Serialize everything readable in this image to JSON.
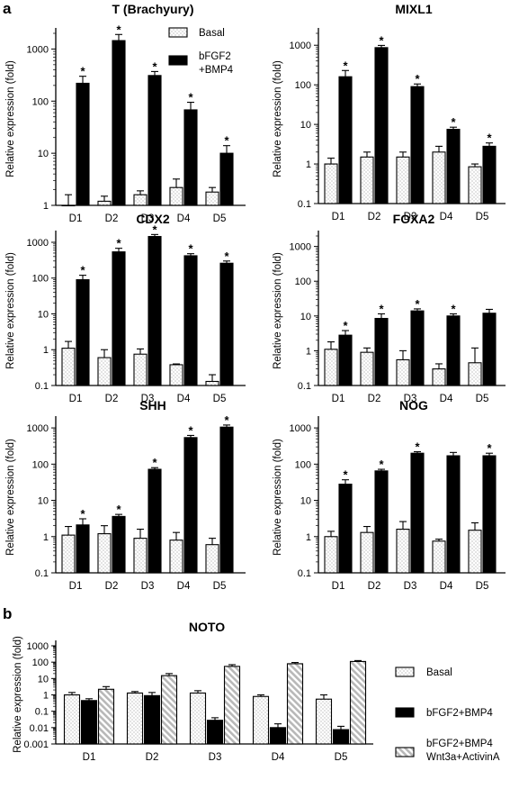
{
  "panel_labels": [
    "a",
    "b"
  ],
  "chart_data": [
    {
      "type": "bar",
      "title": "T (Brachyury)",
      "ylabel": "Relative expression  (fold)",
      "yscale": "log",
      "ylim": [
        1,
        2000
      ],
      "yticks": [
        "1",
        "10",
        "100",
        "1000"
      ],
      "categories": [
        "D1",
        "D2",
        "D3",
        "D4",
        "D5"
      ],
      "legend": {
        "position": "top-right",
        "entries": [
          "Basal",
          "bFGF2",
          "+BMP4"
        ]
      },
      "series": [
        {
          "name": "Basal",
          "values": [
            1.0,
            1.2,
            1.6,
            2.2,
            1.8
          ],
          "err": [
            1.6,
            1.5,
            1.9,
            3.2,
            2.2
          ]
        },
        {
          "name": "bFGF2+BMP4",
          "values": [
            220,
            1450,
            310,
            68,
            10
          ],
          "err": [
            300,
            1900,
            370,
            95,
            14
          ],
          "significant": [
            true,
            true,
            true,
            true,
            true
          ]
        }
      ]
    },
    {
      "type": "bar",
      "title": "MIXL1",
      "ylabel": "Relative expression  (fold)",
      "yscale": "log",
      "ylim": [
        0.1,
        2000
      ],
      "yticks": [
        "0.1",
        "1",
        "10",
        "100",
        "1000"
      ],
      "categories": [
        "D1",
        "D2",
        "D3",
        "D4",
        "D5"
      ],
      "series": [
        {
          "name": "Basal",
          "values": [
            1.0,
            1.5,
            1.5,
            2.0,
            0.85
          ],
          "err": [
            1.4,
            2.0,
            2.0,
            2.8,
            1.0
          ]
        },
        {
          "name": "bFGF2+BMP4",
          "values": [
            160,
            870,
            90,
            7.5,
            2.8
          ],
          "err": [
            230,
            990,
            105,
            8.5,
            3.4
          ],
          "significant": [
            true,
            true,
            true,
            true,
            true
          ]
        }
      ]
    },
    {
      "type": "bar",
      "title": "CDX2",
      "ylabel": "Relative expression  (fold)",
      "yscale": "log",
      "ylim": [
        0.1,
        1500
      ],
      "yticks": [
        "0.1",
        "1",
        "10",
        "100",
        "1000"
      ],
      "categories": [
        "D1",
        "D2",
        "D3",
        "D4",
        "D5"
      ],
      "series": [
        {
          "name": "Basal",
          "values": [
            1.1,
            0.6,
            0.75,
            0.38,
            0.13
          ],
          "err": [
            1.7,
            1.0,
            1.05,
            0.4,
            0.2
          ]
        },
        {
          "name": "bFGF2+BMP4",
          "values": [
            90,
            540,
            1450,
            420,
            260
          ],
          "err": [
            120,
            680,
            1650,
            480,
            300
          ],
          "significant": [
            true,
            true,
            true,
            true,
            true
          ]
        }
      ]
    },
    {
      "type": "bar",
      "title": "FOXA2",
      "ylabel": "Relative expression  (fold)",
      "yscale": "log",
      "ylim": [
        0.1,
        2000
      ],
      "yticks": [
        "0.1",
        "1",
        "10",
        "100",
        "1000"
      ],
      "categories": [
        "D1",
        "D2",
        "D3",
        "D4",
        "D5"
      ],
      "series": [
        {
          "name": "Basal",
          "values": [
            1.1,
            0.9,
            0.55,
            0.3,
            0.45
          ],
          "err": [
            1.8,
            1.2,
            1.0,
            0.42,
            1.2
          ]
        },
        {
          "name": "bFGF2+BMP4",
          "values": [
            2.8,
            8.5,
            14,
            10,
            12
          ],
          "err": [
            3.8,
            11.5,
            16,
            11.5,
            15.5
          ],
          "significant": [
            true,
            true,
            true,
            true,
            false
          ]
        }
      ]
    },
    {
      "type": "bar",
      "title": "SHH",
      "ylabel": "Relative expression  (fold)",
      "yscale": "log",
      "ylim": [
        0.1,
        1500
      ],
      "yticks": [
        "0.1",
        "1",
        "10",
        "100",
        "1000"
      ],
      "categories": [
        "D1",
        "D2",
        "D3",
        "D4",
        "D5"
      ],
      "series": [
        {
          "name": "Basal",
          "values": [
            1.1,
            1.2,
            0.9,
            0.8,
            0.6
          ],
          "err": [
            1.9,
            2.0,
            1.6,
            1.3,
            0.9
          ]
        },
        {
          "name": "bFGF2+BMP4",
          "values": [
            2.1,
            3.6,
            72,
            540,
            1050
          ],
          "err": [
            3.1,
            4.1,
            80,
            620,
            1200
          ],
          "significant": [
            true,
            true,
            true,
            true,
            true
          ]
        }
      ]
    },
    {
      "type": "bar",
      "title": "NOG",
      "ylabel": "Relative expression  (fold)",
      "yscale": "log",
      "ylim": [
        0.1,
        1500
      ],
      "yticks": [
        "0.1",
        "1",
        "10",
        "100",
        "1000"
      ],
      "categories": [
        "D1",
        "D2",
        "D3",
        "D4",
        "D5"
      ],
      "series": [
        {
          "name": "Basal",
          "values": [
            1.0,
            1.3,
            1.6,
            0.75,
            1.5
          ],
          "err": [
            1.4,
            1.9,
            2.6,
            0.85,
            2.4
          ]
        },
        {
          "name": "bFGF2+BMP4",
          "values": [
            28,
            65,
            200,
            170,
            170
          ],
          "err": [
            37,
            72,
            220,
            210,
            200
          ],
          "significant": [
            true,
            true,
            true,
            false,
            true
          ]
        }
      ]
    },
    {
      "type": "bar",
      "title": "NOTO",
      "ylabel": "Relative expression  (fold)",
      "yscale": "log",
      "ylim": [
        0.001,
        1000
      ],
      "yticks": [
        "0.001",
        "0.01",
        "0.1",
        "1",
        "10",
        "100",
        "1000"
      ],
      "categories": [
        "D1",
        "D2",
        "D3",
        "D4",
        "D5"
      ],
      "legend": {
        "position": "right",
        "entries": [
          "Basal",
          "bFGF2+BMP4",
          "bFGF2+BMP4",
          "Wnt3a+ActivinA"
        ]
      },
      "series": [
        {
          "name": "Basal",
          "values": [
            1.0,
            1.3,
            1.3,
            0.8,
            0.55
          ],
          "err": [
            1.4,
            1.6,
            1.8,
            1.0,
            1.0
          ]
        },
        {
          "name": "bFGF2+BMP4",
          "values": [
            0.45,
            0.9,
            0.028,
            0.01,
            0.0075
          ],
          "err": [
            0.58,
            1.4,
            0.04,
            0.017,
            0.012
          ]
        },
        {
          "name": "bFGF2+BMP4 Wnt3a+ActivinA",
          "values": [
            2.2,
            15,
            55,
            80,
            110
          ],
          "err": [
            3.2,
            20,
            70,
            95,
            125
          ]
        }
      ]
    }
  ],
  "marker": "*",
  "colors": {
    "basal_fill": "#ffffff",
    "treated_fill": "#000000",
    "hatch_fill": "#b8b8b8",
    "axis": "#000000"
  }
}
